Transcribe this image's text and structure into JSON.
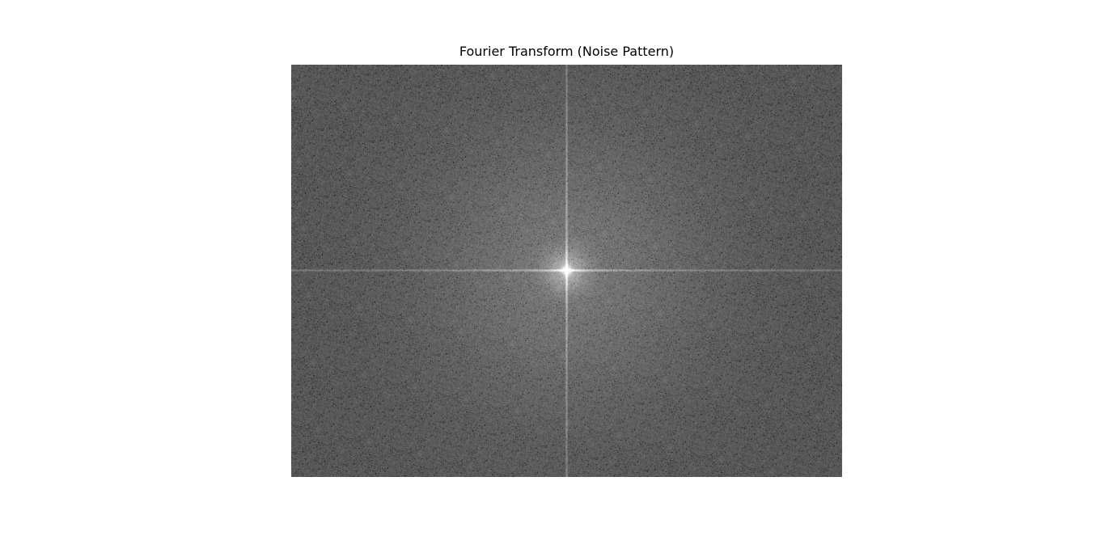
{
  "figure": {
    "title": "Fourier Transform (Noise Pattern)"
  },
  "image": {
    "subject": "centered FFT magnitude spectrum",
    "colormap": "gray",
    "axes_visible": false
  },
  "colors": {
    "background": "#ffffff",
    "spectrum_base": "#5f5f5f",
    "title_text": "#000000"
  }
}
